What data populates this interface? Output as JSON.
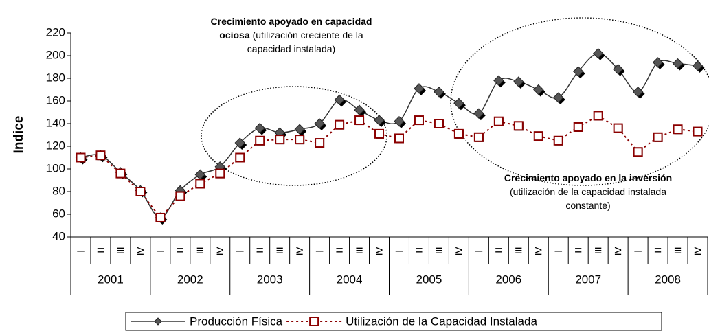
{
  "chart_data": {
    "type": "line",
    "y_label": "Indice",
    "categories": [
      "–",
      "=",
      "≡",
      "≥",
      "–",
      "=",
      "≡",
      "≥",
      "–",
      "=",
      "≡",
      "≥",
      "–",
      "=",
      "≡",
      "≥",
      "–",
      "=",
      "≡",
      "≥",
      "–",
      "=",
      "≡",
      "≥",
      "–",
      "=",
      "≡",
      "≥",
      "–",
      "=",
      "≡",
      "≥"
    ],
    "years": [
      "2001",
      "2002",
      "2003",
      "2004",
      "2005",
      "2006",
      "2007",
      "2008"
    ],
    "series": [
      {
        "name": "Producción Física",
        "color": "#333333",
        "marker": "diamond",
        "values": [
          110,
          112,
          97,
          81,
          57,
          81,
          95,
          102,
          123,
          136,
          132,
          135,
          140,
          161,
          152,
          143,
          142,
          171,
          168,
          158,
          149,
          178,
          177,
          170,
          163,
          186,
          202,
          188,
          168,
          194,
          193,
          191
        ]
      },
      {
        "name": "Utilización de la Capacidad Instalada",
        "color": "#8b0000",
        "marker": "square",
        "values": [
          110,
          112,
          96,
          80,
          57,
          76,
          87,
          96,
          110,
          125,
          126,
          126,
          123,
          139,
          143,
          131,
          127,
          143,
          140,
          131,
          128,
          142,
          138,
          129,
          125,
          137,
          147,
          136,
          115,
          128,
          135,
          133
        ]
      }
    ],
    "ylim": [
      40,
      220
    ],
    "yticks": [
      40,
      60,
      80,
      100,
      120,
      140,
      160,
      180,
      200,
      220
    ],
    "annotations": [
      {
        "lines": [
          {
            "bold": "Crecimiento apoyado en capacidad"
          },
          {
            "bold": "ociosa",
            "text": "(utilización creciente de la"
          },
          {
            "text": "capacidad instalada)"
          }
        ]
      },
      {
        "lines": [
          {
            "bold": "Crecimiento apoyado en la inversión"
          },
          {
            "text": "(utilización de la capacidad instalada"
          },
          {
            "text": "constante)"
          }
        ]
      }
    ]
  }
}
